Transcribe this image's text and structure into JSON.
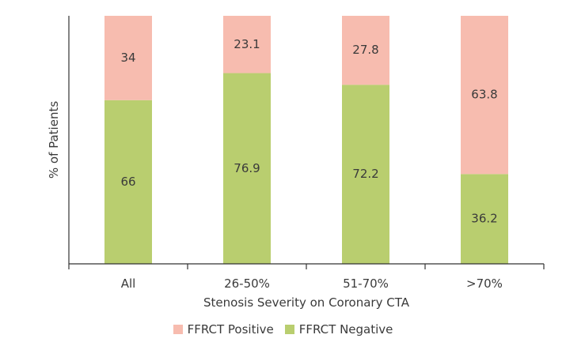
{
  "chart_data": {
    "type": "bar",
    "stacked": true,
    "categories": [
      "All",
      "26-50%",
      "51-70%",
      ">70%"
    ],
    "series": [
      {
        "name": "FFRCT Negative",
        "values": [
          66,
          76.9,
          72.2,
          36.2
        ],
        "color": "#b9ce6f"
      },
      {
        "name": "FFRCT Positive",
        "values": [
          34,
          23.1,
          27.8,
          63.8
        ],
        "color": "#f7bcaf"
      }
    ],
    "title": "",
    "xlabel": "Stenosis Severity on Coronary CTA",
    "ylabel": "% of Patients",
    "ylim": [
      0,
      100
    ],
    "grid": false,
    "legend_position": "bottom"
  },
  "legend": {
    "positive_label": "FFRCT Positive",
    "negative_label": "FFRCT Negative"
  }
}
